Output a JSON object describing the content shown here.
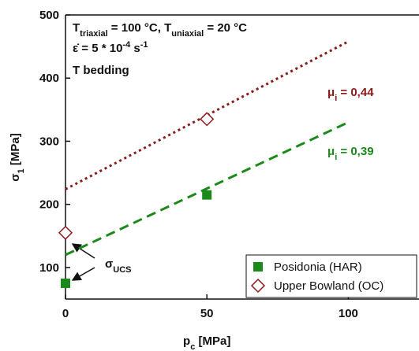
{
  "chart_data": {
    "type": "scatter",
    "x_label": [
      {
        "text": "p"
      },
      {
        "text": "c",
        "sub": true
      },
      {
        "text": " [MPa]"
      }
    ],
    "y_label": [
      {
        "text": "σ"
      },
      {
        "text": "1",
        "sub": true
      },
      {
        "text": " [MPa]"
      }
    ],
    "xlim": [
      0,
      125
    ],
    "xticks": [
      0,
      50,
      100
    ],
    "ylim": [
      50,
      500
    ],
    "yticks": [
      100,
      200,
      300,
      400,
      500
    ],
    "series": [
      {
        "name": "Posidonia (HAR)",
        "color": "#1b8a1b",
        "marker": "square",
        "x": [
          0,
          50
        ],
        "values": [
          75,
          215
        ]
      },
      {
        "name": "Upper Bowland (OC)",
        "color": "#8b1a1a",
        "marker": "diamond",
        "x": [
          0,
          50
        ],
        "values": [
          155,
          335
        ]
      }
    ],
    "fits": [
      {
        "color": "#1b8a1b",
        "dash": "dashed",
        "x": [
          0,
          100
        ],
        "values": [
          120,
          330
        ]
      },
      {
        "color": "#8b1a1a",
        "dash": "dotted",
        "x": [
          0,
          100
        ],
        "values": [
          224,
          458
        ]
      }
    ],
    "annotations": [
      [
        {
          "text": "T"
        },
        {
          "text": "triaxial",
          "sub": true
        },
        {
          "text": " = 100 °C, T"
        },
        {
          "text": "uniaxial",
          "sub": true
        },
        {
          "text": " = 20 °C"
        }
      ],
      [
        {
          "text": "ε̇    =  5 * 10"
        },
        {
          "text": "-4",
          "sup": true
        },
        {
          "text": " s"
        },
        {
          "text": "-1",
          "sup": true
        }
      ],
      [
        {
          "text": "T bedding"
        }
      ],
      [
        {
          "text": "μ",
          "color": "#8b1a1a"
        },
        {
          "text": "i",
          "sub": true,
          "color": "#8b1a1a"
        },
        {
          "text": " = 0,44",
          "color": "#8b1a1a"
        }
      ],
      [
        {
          "text": "μ",
          "color": "#1b8a1b"
        },
        {
          "text": "i",
          "sub": true,
          "color": "#1b8a1b"
        },
        {
          "text": " = 0,39",
          "color": "#1b8a1b"
        }
      ],
      [
        {
          "text": "σ"
        },
        {
          "text": "UCS",
          "sub": true
        }
      ]
    ],
    "legend": "lower right"
  }
}
